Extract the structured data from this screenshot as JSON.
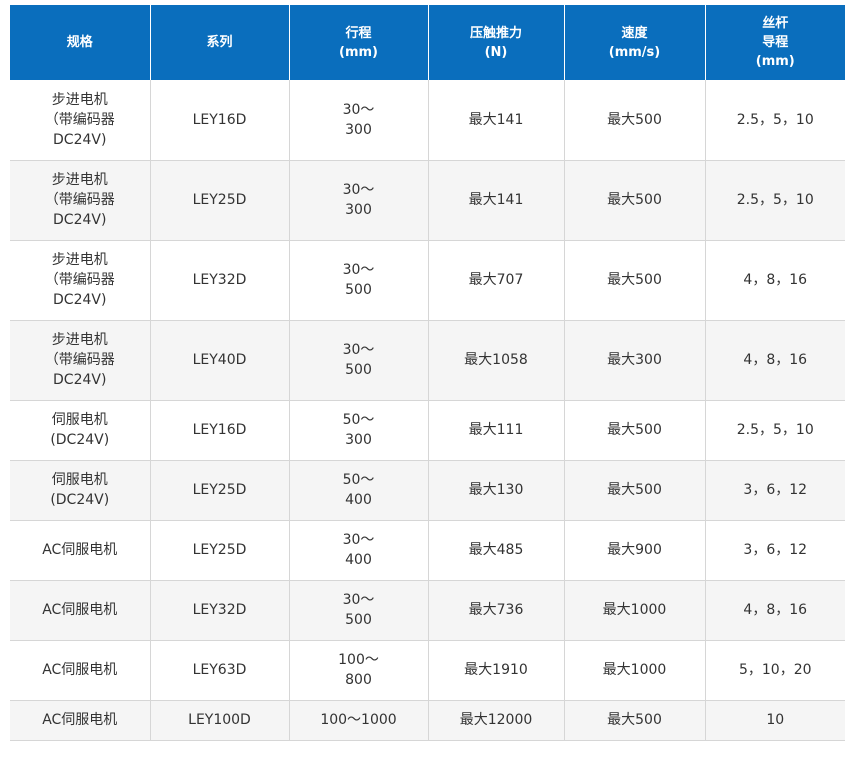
{
  "header": {
    "col_spec": [
      "规格"
    ],
    "col_series": [
      "系列"
    ],
    "col_stroke": [
      "行程",
      "(mm)"
    ],
    "col_force": [
      "压触推力",
      "(N)"
    ],
    "col_speed": [
      "速度",
      "(mm/s)"
    ],
    "col_lead": [
      "丝杆",
      "导程",
      "(mm)"
    ]
  },
  "rows": [
    {
      "spec": "步进电机\n（带编码器\nDC24V)",
      "series": "LEY16D",
      "stroke": "30～\n300",
      "force": "最大141",
      "speed": "最大500",
      "lead": "2.5，5，10"
    },
    {
      "spec": "步进电机\n（带编码器\nDC24V)",
      "series": "LEY25D",
      "stroke": "30～\n300",
      "force": "最大141",
      "speed": "最大500",
      "lead": "2.5，5，10"
    },
    {
      "spec": "步进电机\n（带编码器\nDC24V)",
      "series": "LEY32D",
      "stroke": "30～\n500",
      "force": "最大707",
      "speed": "最大500",
      "lead": "4，8，16"
    },
    {
      "spec": "步进电机\n（带编码器\nDC24V)",
      "series": "LEY40D",
      "stroke": "30～\n500",
      "force": "最大1058",
      "speed": "最大300",
      "lead": "4，8，16"
    },
    {
      "spec": "伺服电机\n(DC24V)",
      "series": "LEY16D",
      "stroke": "50～\n300",
      "force": "最大111",
      "speed": "最大500",
      "lead": "2.5，5，10"
    },
    {
      "spec": "伺服电机\n(DC24V)",
      "series": "LEY25D",
      "stroke": "50～\n400",
      "force": "最大130",
      "speed": "最大500",
      "lead": "3，6，12"
    },
    {
      "spec": "AC伺服电机",
      "series": "LEY25D",
      "stroke": "30～\n400",
      "force": "最大485",
      "speed": "最大900",
      "lead": "3，6，12"
    },
    {
      "spec": "AC伺服电机",
      "series": "LEY32D",
      "stroke": "30～\n500",
      "force": "最大736",
      "speed": "最大1000",
      "lead": "4，8，16"
    },
    {
      "spec": "AC伺服电机",
      "series": "LEY63D",
      "stroke": "100～\n800",
      "force": "最大1910",
      "speed": "最大1000",
      "lead": "5，10，20"
    },
    {
      "spec": "AC伺服电机",
      "series": "LEY100D",
      "stroke": "100～1000",
      "force": "最大12000",
      "speed": "最大500",
      "lead": "10"
    }
  ],
  "colors": {
    "header_bg": "#0a6ebd",
    "header_text": "#ffffff",
    "row_alt_bg": "#f5f5f5",
    "grid_line": "#d6d6d6"
  }
}
